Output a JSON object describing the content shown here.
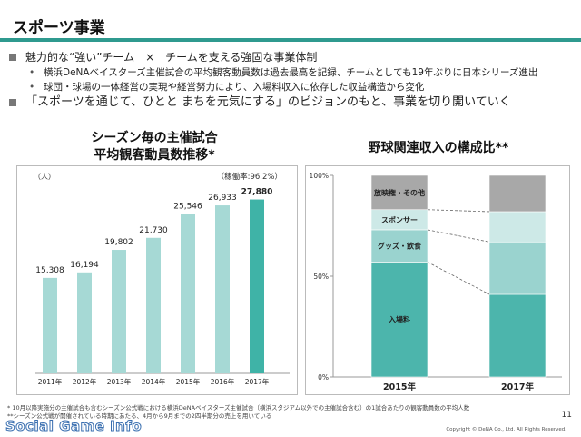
{
  "page": {
    "title": "スポーツ事業",
    "bullets": [
      {
        "level": 1,
        "text": "魅力的な“強い”チーム　×　チームを支える強固な事業体制"
      },
      {
        "level": 2,
        "text": "横浜DeNAベイスターズ主催試合の平均観客動員数は過去最高を記録、チームとしても19年ぶりに日本シリーズ進出"
      },
      {
        "level": 2,
        "text": "球団・球場の一体経営の実現や経営努力により、入場料収入に依存した収益構造から変化"
      },
      {
        "level": 1,
        "text": "「スポーツを通じて、ひとと まちを元気にする」のビジョンのもと、事業を切り開いていく"
      }
    ],
    "left_title_line1": "シーズン毎の主催試合",
    "left_title_line2": "平均観客動員数推移*",
    "right_title": "野球関連収入の構成比**",
    "unit_label": "（人）",
    "occupancy_label": "（稼働率:96.2%）",
    "footnote1": "* 10月以降実施分の主催試合も含むシーズン公式戦における横浜DeNAベイスターズ主催試合（横浜スタジアム以外での主催試合含む）の1試合あたりの観客動員数の平均人数",
    "footnote2": "**シーズン公式戦が開催されている時期にあたる、4月から9月までの2四半期分の売上を用いている",
    "page_number": "11",
    "brand": "Social Game Info",
    "copyright": "Copyright © DeNA Co., Ltd. All Rights Reserved."
  },
  "colors": {
    "accent": "#2f9a8f",
    "bar_light": "#a6d9d5",
    "bar_dark": "#3fb3a7",
    "seg_admission": "#4cb5ac",
    "seg_goods": "#9ad3cf",
    "seg_sponsor": "#cde9e7",
    "seg_broadcast": "#a8a8a8"
  },
  "chart_data": [
    {
      "type": "bar",
      "categories": [
        "2011年",
        "2012年",
        "2013年",
        "2014年",
        "2015年",
        "2016年",
        "2017年"
      ],
      "values": [
        15308,
        16194,
        19802,
        21730,
        25546,
        26933,
        27880
      ],
      "value_labels": [
        "15,308",
        "16,194",
        "19,802",
        "21,730",
        "25,546",
        "26,933",
        "27,880"
      ],
      "ylim": [
        0,
        30000
      ],
      "highlight_index": 6
    },
    {
      "type": "bar",
      "stacked": true,
      "percent": true,
      "categories": [
        "2015年",
        "2017年"
      ],
      "series": [
        {
          "name": "入場料",
          "values": [
            57,
            41
          ]
        },
        {
          "name": "グッズ・飲食",
          "values": [
            16,
            26
          ]
        },
        {
          "name": "スポンサー",
          "values": [
            10,
            15
          ]
        },
        {
          "name": "放映権・その他",
          "values": [
            17,
            18
          ]
        }
      ],
      "yticks": [
        "0%",
        "50%",
        "100%"
      ],
      "ylim": [
        0,
        100
      ]
    }
  ]
}
